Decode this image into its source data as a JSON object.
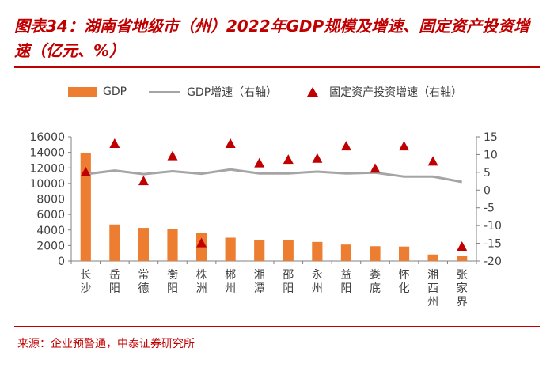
{
  "title": "图表34：湖南省地级市（州）2022年GDP规模及增速、固定资产投资增速（亿元、%）",
  "source": "来源：企业预警通，中泰证券研究所",
  "colors": {
    "bar": "#ed7d31",
    "line": "#a5a5a5",
    "marker": "#c00000",
    "accent": "#c00000"
  },
  "chart_data": {
    "type": "bar",
    "categories": [
      "长沙",
      "岳阳",
      "常德",
      "衡阳",
      "株洲",
      "郴州",
      "湘潭",
      "邵阳",
      "永州",
      "益阳",
      "娄底",
      "怀化",
      "湘西州",
      "张家界"
    ],
    "series": [
      {
        "name": "GDP",
        "type": "bar",
        "axis": "left",
        "values": [
          13966,
          4711,
          4274,
          4089,
          3616,
          3007,
          2697,
          2651,
          2462,
          2120,
          1910,
          1865,
          842,
          620
        ]
      },
      {
        "name": "GDP增速（右轴）",
        "type": "line",
        "axis": "right",
        "values": [
          4.5,
          5.5,
          4.5,
          5.3,
          4.6,
          5.8,
          4.7,
          4.7,
          5.2,
          4.7,
          4.9,
          3.8,
          3.8,
          2.3
        ]
      },
      {
        "name": "固定资产投资增速（右轴）",
        "type": "scatter",
        "marker": "triangle",
        "axis": "right",
        "values": [
          5.0,
          13.0,
          2.5,
          9.5,
          -15.0,
          13.0,
          7.5,
          8.5,
          8.8,
          12.3,
          6.0,
          12.3,
          8.0,
          -16.0
        ]
      }
    ],
    "ylim_left": [
      0,
      16000
    ],
    "yticks_left": [
      0,
      2000,
      4000,
      6000,
      8000,
      10000,
      12000,
      14000,
      16000
    ],
    "ylim_right": [
      -20,
      15
    ],
    "yticks_right": [
      15,
      10,
      5,
      0,
      -5,
      -10,
      -15,
      -20
    ],
    "legend_position": "top",
    "grid": false
  }
}
